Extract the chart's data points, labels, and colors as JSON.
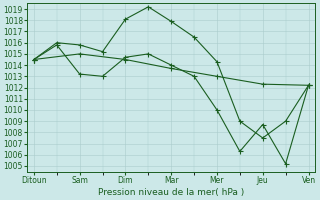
{
  "x_labels": [
    "Ditoun",
    "Sam",
    "Dim",
    "Mar",
    "Mer",
    "Jeu",
    "Ven"
  ],
  "x_positions": [
    0,
    1,
    2,
    3,
    4,
    5,
    6
  ],
  "xlabel": "Pression niveau de la mer( hPa )",
  "ylim": [
    1004.5,
    1019.5
  ],
  "yticks": [
    1005,
    1006,
    1007,
    1008,
    1009,
    1010,
    1011,
    1012,
    1013,
    1014,
    1015,
    1016,
    1017,
    1018,
    1019
  ],
  "background_color": "#cce8e8",
  "grid_color": "#aacccc",
  "line_color": "#1a5e20",
  "line1_x": [
    0,
    0.5,
    1.0,
    1.5,
    2.0,
    2.5,
    3.0,
    3.5,
    4.0,
    4.5,
    5.0,
    5.5,
    6.0
  ],
  "line1_y": [
    1014.5,
    1016.0,
    1015.8,
    1015.2,
    1018.1,
    1019.2,
    1017.9,
    1016.5,
    1014.3,
    1009.0,
    1007.5,
    1009.0,
    1012.2
  ],
  "line2_x": [
    0,
    0.5,
    1.0,
    1.5,
    2.0,
    2.5,
    3.0,
    3.5,
    4.0,
    4.5,
    5.0,
    5.5,
    6.0
  ],
  "line2_y": [
    1014.5,
    1015.8,
    1013.2,
    1013.0,
    1014.7,
    1015.0,
    1014.0,
    1013.0,
    1010.0,
    1006.3,
    1008.7,
    1005.2,
    1012.2
  ],
  "line3_x": [
    0,
    1.0,
    2.0,
    3.0,
    4.0,
    5.0,
    6.0
  ],
  "line3_y": [
    1014.5,
    1015.0,
    1014.5,
    1013.7,
    1013.0,
    1012.3,
    1012.2
  ],
  "linewidth": 0.8,
  "markersize": 2.0,
  "tick_labelsize": 5.5,
  "xlabel_fontsize": 6.5
}
